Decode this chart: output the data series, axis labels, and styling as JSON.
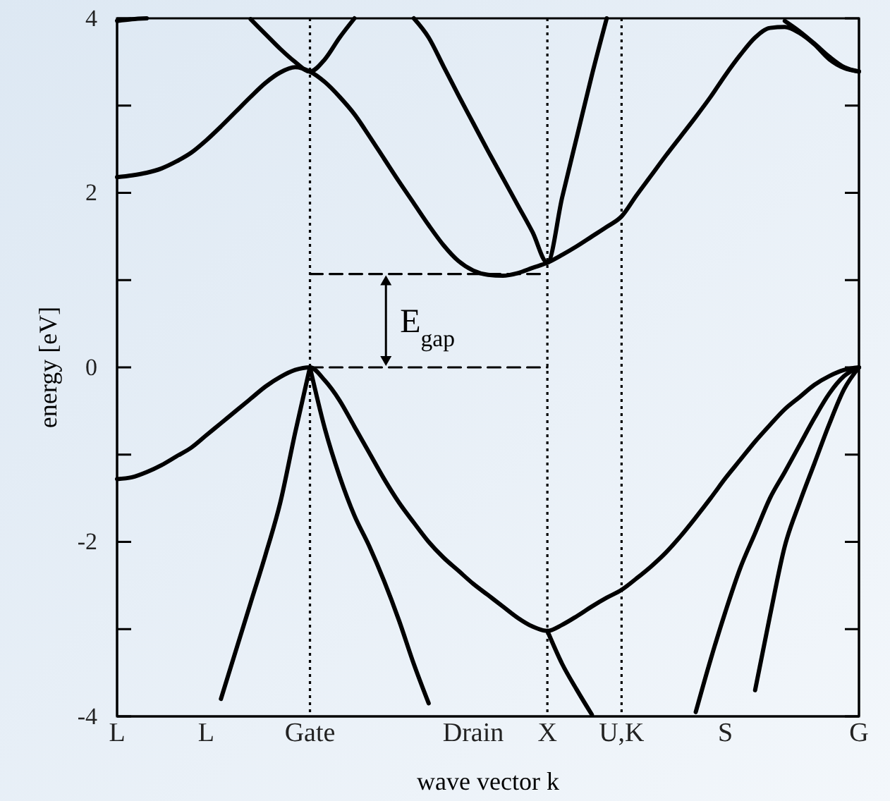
{
  "chart_data": {
    "type": "line",
    "xlabel": "wave vector k",
    "ylabel": "energy [eV]",
    "categories": [
      "L",
      null,
      null,
      null,
      null,
      null,
      "L",
      null,
      null,
      null,
      null,
      null,
      null,
      "Gate",
      null,
      null,
      null,
      null,
      null,
      null,
      null,
      null,
      null,
      null,
      "Drain",
      null,
      null,
      null,
      null,
      "X",
      null,
      null,
      null,
      null,
      "U,K",
      null,
      null,
      null,
      null,
      null,
      null,
      "S",
      null,
      null,
      null,
      null,
      null,
      null,
      null,
      null,
      "G"
    ],
    "ylim": [
      -4,
      4
    ],
    "yticks": [
      -4,
      {
        "value": -3,
        "label": null
      },
      -2,
      {
        "value": -1,
        "label": null
      },
      0,
      {
        "value": 1,
        "label": null
      },
      2,
      {
        "value": 3,
        "label": null
      },
      4
    ],
    "grid": false,
    "marker": "none",
    "ref_lines": [
      {
        "axis": "x",
        "value": "Gate",
        "color": "#000000",
        "line_style": "dotted"
      },
      {
        "axis": "x",
        "value": "X",
        "color": "#000000",
        "line_style": "dotted"
      },
      {
        "axis": "x",
        "value": "U,K",
        "color": "#000000",
        "line_style": "dotted"
      }
    ],
    "annotations": [
      "E$_{gap}$"
    ],
    "series": [
      {
        "color": "#000000",
        "values": [
          -1.28,
          -1.26,
          -1.2,
          -1.12,
          -1.02,
          -0.92,
          -0.78,
          -0.64,
          -0.5,
          -0.36,
          -0.22,
          -0.11,
          -0.03,
          0,
          -0.15,
          -0.38,
          -0.68,
          -0.98,
          -1.28,
          -1.55,
          -1.78,
          -2.0,
          -2.18,
          -2.33,
          -2.48,
          -2.61,
          -2.74,
          -2.87,
          -2.97,
          -3.02,
          -2.95,
          -2.85,
          -2.74,
          -2.64,
          -2.55,
          -2.42,
          -2.28,
          -2.12,
          -1.93,
          -1.72,
          -1.5,
          -1.27,
          -1.06,
          -0.85,
          -0.66,
          -0.48,
          -0.34,
          -0.2,
          -0.1,
          -0.03,
          0
        ]
      },
      {
        "color": "#000000",
        "values": [
          null,
          null,
          null,
          null,
          null,
          null,
          null,
          -3.8,
          -3.25,
          -2.7,
          -2.15,
          -1.55,
          -0.75,
          0,
          null,
          null,
          null,
          null,
          null,
          null,
          null,
          null,
          null,
          null,
          null,
          null,
          null,
          null,
          null,
          null,
          null,
          null,
          null,
          null,
          null,
          null,
          null,
          null,
          null,
          null,
          null,
          null,
          null,
          null,
          null,
          null,
          null,
          null,
          null,
          null,
          null
        ]
      },
      {
        "color": "#000000",
        "values": [
          null,
          null,
          null,
          null,
          null,
          null,
          null,
          null,
          null,
          null,
          null,
          null,
          null,
          0,
          -0.7,
          -1.25,
          -1.7,
          -2.05,
          -2.45,
          -2.9,
          -3.4,
          -3.85,
          null,
          null,
          null,
          null,
          null,
          null,
          null,
          null,
          null,
          null,
          null,
          null,
          null,
          null,
          null,
          null,
          null,
          null,
          null,
          null,
          null,
          null,
          null,
          null,
          null,
          null,
          null,
          null,
          null
        ]
      },
      {
        "color": "#000000",
        "values": [
          null,
          null,
          null,
          null,
          null,
          null,
          null,
          null,
          null,
          null,
          null,
          null,
          null,
          null,
          null,
          null,
          null,
          null,
          null,
          null,
          null,
          null,
          null,
          null,
          null,
          null,
          null,
          null,
          null,
          -3.02,
          -3.4,
          -3.7,
          -3.98,
          null,
          null,
          null,
          null,
          null,
          null,
          null,
          null,
          null,
          null,
          null,
          null,
          null,
          null,
          null,
          null,
          null,
          null
        ]
      },
      {
        "color": "#000000",
        "values": [
          null,
          null,
          null,
          null,
          null,
          null,
          null,
          null,
          null,
          null,
          null,
          null,
          null,
          null,
          null,
          null,
          null,
          null,
          null,
          null,
          null,
          null,
          null,
          null,
          null,
          null,
          null,
          null,
          null,
          null,
          null,
          null,
          null,
          null,
          null,
          null,
          null,
          null,
          null,
          -3.95,
          -3.35,
          -2.8,
          -2.3,
          -1.9,
          -1.5,
          -1.2,
          -0.89,
          -0.58,
          -0.3,
          -0.1,
          0
        ]
      },
      {
        "color": "#000000",
        "values": [
          null,
          null,
          null,
          null,
          null,
          null,
          null,
          null,
          null,
          null,
          null,
          null,
          null,
          null,
          null,
          null,
          null,
          null,
          null,
          null,
          null,
          null,
          null,
          null,
          null,
          null,
          null,
          null,
          null,
          null,
          null,
          null,
          null,
          null,
          null,
          null,
          null,
          null,
          null,
          null,
          null,
          null,
          null,
          -3.7,
          -2.85,
          -2.05,
          -1.55,
          -1.1,
          -0.65,
          -0.25,
          0
        ]
      },
      {
        "color": "#000000",
        "values": [
          2.18,
          2.2,
          2.23,
          2.28,
          2.36,
          2.46,
          2.6,
          2.76,
          2.93,
          3.1,
          3.26,
          3.38,
          3.44,
          3.39,
          3.27,
          3.1,
          2.9,
          2.65,
          2.39,
          2.13,
          1.88,
          1.63,
          1.4,
          1.22,
          1.11,
          1.06,
          1.05,
          1.08,
          1.14,
          1.2,
          1.29,
          1.39,
          1.5,
          1.61,
          1.73,
          1.97,
          2.2,
          2.43,
          2.65,
          2.87,
          3.1,
          3.35,
          3.58,
          3.78,
          3.89,
          3.9,
          3.83,
          3.7,
          3.53,
          3.43,
          3.39
        ]
      },
      {
        "color": "#000000",
        "values": [
          null,
          null,
          null,
          null,
          null,
          null,
          null,
          null,
          null,
          null,
          null,
          null,
          null,
          null,
          null,
          null,
          null,
          null,
          null,
          null,
          null,
          null,
          null,
          null,
          null,
          null,
          null,
          null,
          null,
          null,
          null,
          null,
          null,
          null,
          null,
          null,
          null,
          null,
          null,
          null,
          null,
          null,
          null,
          null,
          null,
          3.97,
          3.85,
          3.71,
          3.56,
          3.44,
          3.39
        ]
      },
      {
        "color": "#000000",
        "values": [
          null,
          null,
          null,
          null,
          null,
          null,
          null,
          null,
          null,
          3.99,
          3.82,
          3.65,
          3.5,
          3.39,
          3.53,
          3.78,
          4,
          null,
          null,
          null,
          null,
          null,
          null,
          null,
          null,
          null,
          null,
          null,
          null,
          null,
          null,
          null,
          null,
          null,
          null,
          null,
          null,
          null,
          null,
          null,
          null,
          null,
          null,
          null,
          null,
          null,
          null,
          null,
          null,
          null,
          null
        ]
      },
      {
        "color": "#000000",
        "values": [
          null,
          null,
          null,
          null,
          null,
          null,
          null,
          null,
          null,
          null,
          null,
          null,
          null,
          null,
          null,
          null,
          null,
          null,
          null,
          null,
          4,
          3.78,
          3.45,
          3.12,
          2.8,
          2.48,
          2.17,
          1.86,
          1.55,
          1.2,
          1.95,
          2.65,
          3.35,
          4,
          null,
          null,
          null,
          null,
          null,
          null,
          null,
          null,
          null,
          null,
          null,
          null,
          null,
          null,
          null,
          null,
          null
        ]
      },
      {
        "color": "#000000",
        "values": [
          3.97,
          3.99,
          4,
          null,
          null,
          null,
          null,
          null,
          null,
          null,
          null,
          null,
          null,
          null,
          null,
          null,
          null,
          null,
          null,
          null,
          null,
          null,
          null,
          null,
          null,
          null,
          null,
          null,
          null,
          null,
          null,
          null,
          null,
          null,
          null,
          null,
          null,
          null,
          null,
          null,
          null,
          null,
          null,
          null,
          null,
          null,
          null,
          null,
          null,
          null,
          null
        ]
      },
      {
        "color": "#000000",
        "line_style": "dashed",
        "values": [
          null,
          null,
          null,
          null,
          null,
          null,
          null,
          null,
          null,
          null,
          null,
          null,
          null,
          1.07,
          1.07,
          1.07,
          1.07,
          1.07,
          1.07,
          1.07,
          1.07,
          1.07,
          1.07,
          1.07,
          1.07,
          1.07,
          1.07,
          1.07,
          1.07,
          1.07,
          null,
          null,
          null,
          null,
          null,
          null,
          null,
          null,
          null,
          null,
          null,
          null,
          null,
          null,
          null,
          null,
          null,
          null,
          null,
          null,
          null
        ]
      },
      {
        "color": "#000000",
        "line_style": "dashed",
        "values": [
          null,
          null,
          null,
          null,
          null,
          null,
          null,
          null,
          null,
          null,
          null,
          null,
          null,
          0,
          0,
          0,
          0,
          0,
          0,
          0,
          0,
          0,
          0,
          0,
          0,
          0,
          0,
          0,
          0,
          0,
          null,
          null,
          null,
          null,
          null,
          null,
          null,
          null,
          null,
          null,
          null,
          null,
          null,
          null,
          null,
          null,
          null,
          null,
          null,
          null,
          null
        ]
      }
    ]
  }
}
